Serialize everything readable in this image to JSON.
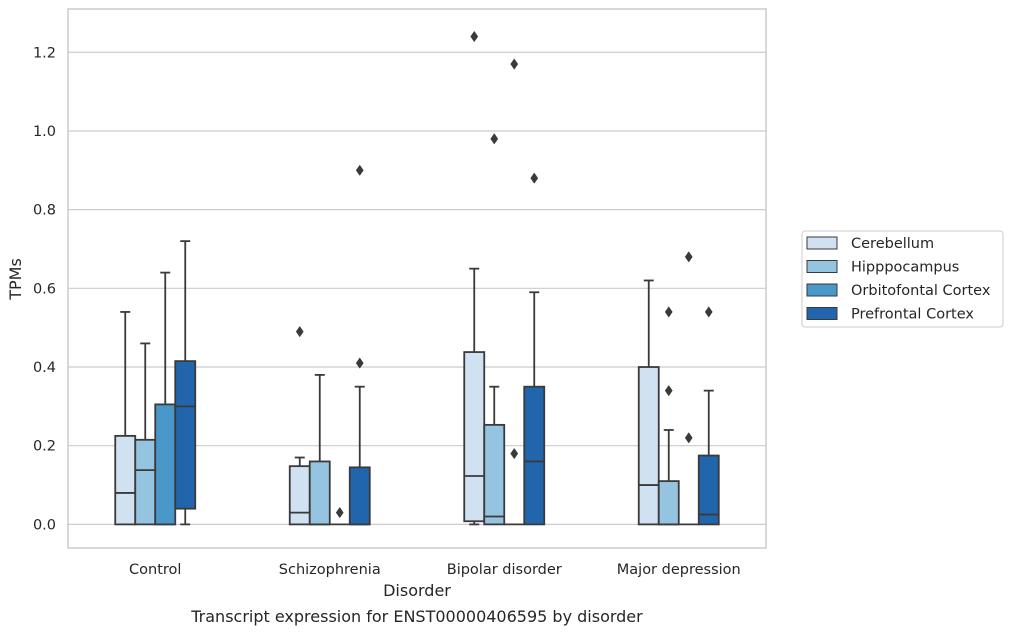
{
  "chart_data": {
    "type": "box",
    "title": "",
    "caption": "Transcript expression for ENST00000406595 by disorder",
    "xlabel": "Disorder",
    "ylabel": "TPMs",
    "ylim": [
      -0.06,
      1.31
    ],
    "yticks": [
      "0.0",
      "0.2",
      "0.4",
      "0.6",
      "0.8",
      "1.0",
      "1.2"
    ],
    "grid": true,
    "legend_placement": "right",
    "categories": [
      "Control",
      "Schizophrenia",
      "Bipolar disorder",
      "Major depression"
    ],
    "series": [
      {
        "name": "Cerebellum",
        "color": "#d0e1f2",
        "boxes": [
          {
            "whisker_low": 0.0,
            "q1": 0.0,
            "median": 0.08,
            "q3": 0.225,
            "whisker_high": 0.54,
            "outliers": []
          },
          {
            "whisker_low": 0.0,
            "q1": 0.0,
            "median": 0.03,
            "q3": 0.148,
            "whisker_high": 0.17,
            "outliers": [
              0.49
            ]
          },
          {
            "whisker_low": 0.0,
            "q1": 0.008,
            "median": 0.123,
            "q3": 0.438,
            "whisker_high": 0.65,
            "outliers": [
              1.24
            ]
          },
          {
            "whisker_low": 0.0,
            "q1": 0.0,
            "median": 0.1,
            "q3": 0.4,
            "whisker_high": 0.62,
            "outliers": []
          }
        ]
      },
      {
        "name": "Hipppocampus",
        "color": "#94c4df",
        "boxes": [
          {
            "whisker_low": 0.0,
            "q1": 0.0,
            "median": 0.138,
            "q3": 0.215,
            "whisker_high": 0.46,
            "outliers": []
          },
          {
            "whisker_low": 0.0,
            "q1": 0.0,
            "median": 0.0,
            "q3": 0.16,
            "whisker_high": 0.38,
            "outliers": []
          },
          {
            "whisker_low": 0.0,
            "q1": 0.0,
            "median": 0.02,
            "q3": 0.253,
            "whisker_high": 0.35,
            "outliers": [
              0.98
            ]
          },
          {
            "whisker_low": 0.0,
            "q1": 0.0,
            "median": 0.0,
            "q3": 0.11,
            "whisker_high": 0.24,
            "outliers": [
              0.34,
              0.54
            ]
          }
        ]
      },
      {
        "name": "Orbitofontal Cortex",
        "color": "#4a98c9",
        "boxes": [
          {
            "whisker_low": 0.0,
            "q1": 0.0,
            "median": 0.0,
            "q3": 0.305,
            "whisker_high": 0.64,
            "outliers": []
          },
          {
            "whisker_low": 0.0,
            "q1": 0.0,
            "median": 0.0,
            "q3": 0.0,
            "whisker_high": 0.0,
            "outliers": [
              0.03
            ]
          },
          {
            "whisker_low": 0.0,
            "q1": 0.0,
            "median": 0.0,
            "q3": 0.0,
            "whisker_high": 0.0,
            "outliers": [
              0.18,
              1.17
            ]
          },
          {
            "whisker_low": 0.0,
            "q1": 0.0,
            "median": 0.0,
            "q3": 0.0,
            "whisker_high": 0.0,
            "outliers": [
              0.22,
              0.68
            ]
          }
        ]
      },
      {
        "name": "Prefrontal Cortex",
        "color": "#2166ac",
        "boxes": [
          {
            "whisker_low": 0.0,
            "q1": 0.04,
            "median": 0.3,
            "q3": 0.415,
            "whisker_high": 0.72,
            "outliers": []
          },
          {
            "whisker_low": 0.0,
            "q1": 0.0,
            "median": 0.0,
            "q3": 0.145,
            "whisker_high": 0.35,
            "outliers": [
              0.41,
              0.9
            ]
          },
          {
            "whisker_low": 0.0,
            "q1": 0.0,
            "median": 0.16,
            "q3": 0.35,
            "whisker_high": 0.59,
            "outliers": [
              0.88
            ]
          },
          {
            "whisker_low": 0.0,
            "q1": 0.0,
            "median": 0.025,
            "q3": 0.175,
            "whisker_high": 0.34,
            "outliers": [
              0.54
            ]
          }
        ]
      }
    ]
  }
}
